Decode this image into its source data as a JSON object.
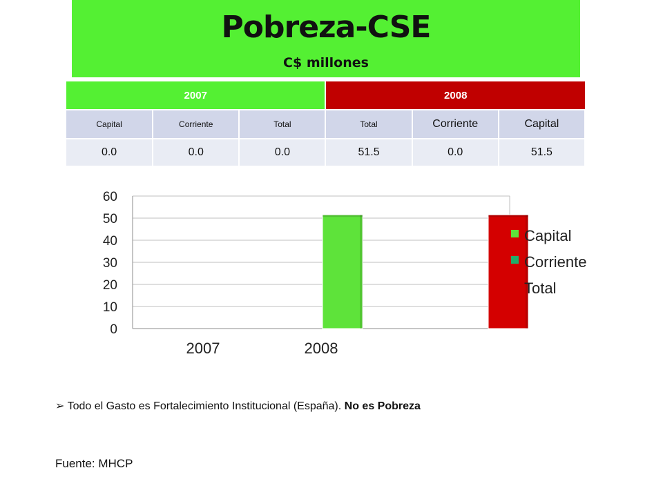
{
  "header": {
    "title": "Pobreza-CSE",
    "subtitle": "C$ millones"
  },
  "table": {
    "year_2007": "2007",
    "year_2008": "2008",
    "columns": [
      "Capital",
      "Corriente",
      "Total",
      "Total",
      "Corriente",
      "Capital"
    ],
    "values": [
      "0.0",
      "0.0",
      "0.0",
      "51.5",
      "0.0",
      "51.5"
    ]
  },
  "chart_data": {
    "type": "bar",
    "categories": [
      "2007",
      "2008"
    ],
    "series": [
      {
        "name": "Capital",
        "values": [
          0,
          51.5
        ],
        "color": "#5ee33a"
      },
      {
        "name": "Corriente",
        "values": [
          0,
          0
        ],
        "color": "#1fae6a"
      },
      {
        "name": "Total",
        "values": [
          0,
          51.5
        ],
        "color": "#d40000"
      }
    ],
    "ylim": [
      0,
      60
    ],
    "yticks": [
      0,
      10,
      20,
      30,
      40,
      50,
      60
    ],
    "grid": true,
    "legend": "right"
  },
  "notes": {
    "bullet_text": "Todo el Gasto es Fortalecimiento Institucional (España).",
    "bullet_emphasis": "No es Pobreza",
    "source": "Fuente: MHCP"
  }
}
